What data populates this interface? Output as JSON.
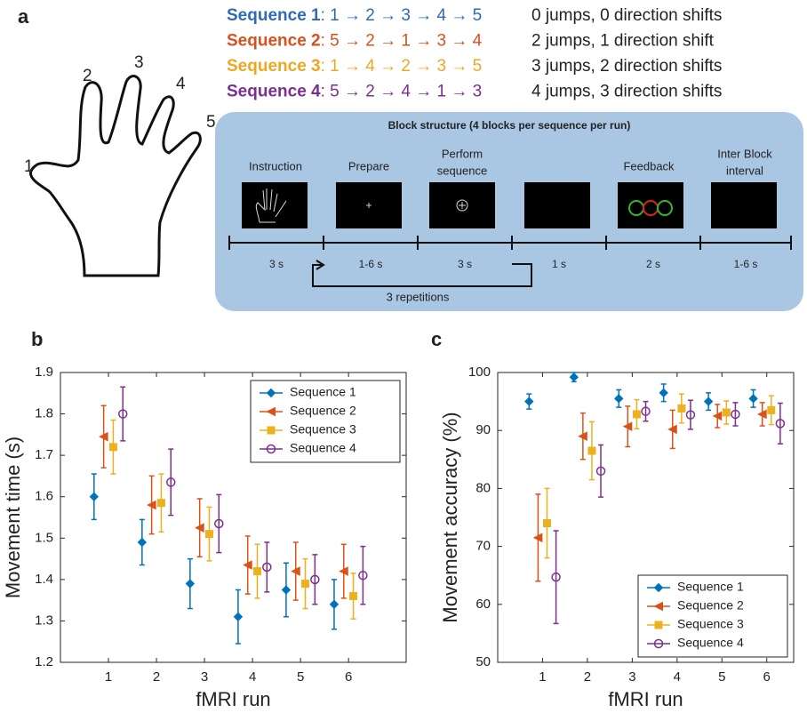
{
  "panel_a": {
    "panel_label": "a",
    "finger_labels": [
      "1",
      "2",
      "3",
      "4",
      "5"
    ],
    "sequences": [
      {
        "name": "Sequence 1",
        "steps": ": 1 → 2 → 3 → 4 → 5",
        "description": "0 jumps, 0 direction shifts",
        "color": "#2f6ab8"
      },
      {
        "name": "Sequence 2",
        "steps": ": 5 → 2 → 1 → 3 → 4",
        "description": "2 jumps, 1 direction shift",
        "color": "#d9501f"
      },
      {
        "name": "Sequence 3",
        "steps": ": 1 → 4 → 2 → 3 → 5",
        "description": "3 jumps, 2 direction shifts",
        "color": "#eba922"
      },
      {
        "name": "Sequence 4",
        "steps": ": 5 → 2 → 4 → 1 → 3",
        "description": "4 jumps, 3 direction shifts",
        "color": "#7b2f8e"
      }
    ],
    "block": {
      "title": "Block structure (4 blocks per sequence per run)",
      "stage_labels": [
        [
          "Instruction"
        ],
        [
          "Prepare"
        ],
        [
          "Perform",
          "sequence"
        ],
        [
          "Feedback"
        ],
        [
          "Inter Block",
          "interval"
        ]
      ],
      "durations": [
        "3 s",
        "1-6 s",
        "3 s",
        "1 s",
        "2 s",
        "1-6 s"
      ],
      "repetitions": "3 repetitions"
    }
  },
  "chart_data": [
    {
      "type": "errorbar",
      "panel_label": "b",
      "x_label": "fMRI run",
      "y_label": "Movement time (s)",
      "xlim": [
        0,
        7.2
      ],
      "xticks": [
        1,
        2,
        3,
        4,
        5,
        6
      ],
      "ylim": [
        1.2,
        1.9
      ],
      "yticks": [
        1.2,
        1.3,
        1.4,
        1.5,
        1.6,
        1.7,
        1.8,
        1.9
      ],
      "legend": "upper right",
      "series": [
        {
          "name": "Sequence 1",
          "color": "#0072bd",
          "marker": "diamond",
          "x": [
            0.7,
            1.7,
            2.7,
            3.7,
            4.7,
            5.7
          ],
          "values": [
            1.6,
            1.49,
            1.39,
            1.31,
            1.375,
            1.34
          ],
          "errors": [
            0.055,
            0.055,
            0.06,
            0.065,
            0.065,
            0.06
          ]
        },
        {
          "name": "Sequence 2",
          "color": "#d95319",
          "marker": "triangle-left",
          "x": [
            0.9,
            1.9,
            2.9,
            3.9,
            4.9,
            5.9
          ],
          "values": [
            1.745,
            1.58,
            1.525,
            1.435,
            1.42,
            1.42
          ],
          "errors": [
            0.075,
            0.07,
            0.07,
            0.07,
            0.07,
            0.065
          ]
        },
        {
          "name": "Sequence 3",
          "color": "#edb120",
          "marker": "square",
          "x": [
            1.1,
            2.1,
            3.1,
            4.1,
            5.1,
            6.1
          ],
          "values": [
            1.72,
            1.585,
            1.51,
            1.42,
            1.39,
            1.36
          ],
          "errors": [
            0.065,
            0.07,
            0.065,
            0.065,
            0.06,
            0.055
          ]
        },
        {
          "name": "Sequence 4",
          "color": "#7e2f8e",
          "marker": "circle",
          "x": [
            1.3,
            2.3,
            3.3,
            4.3,
            5.3,
            6.3
          ],
          "values": [
            1.8,
            1.635,
            1.535,
            1.43,
            1.4,
            1.41
          ],
          "errors": [
            0.065,
            0.08,
            0.07,
            0.06,
            0.06,
            0.07
          ]
        }
      ]
    },
    {
      "type": "errorbar",
      "panel_label": "c",
      "x_label": "fMRI run",
      "y_label": "Movement accuracy (%)",
      "xlim": [
        0,
        6.6
      ],
      "xticks": [
        1,
        2,
        3,
        4,
        5,
        6
      ],
      "ylim": [
        50,
        100
      ],
      "yticks": [
        50,
        60,
        70,
        80,
        90,
        100
      ],
      "legend": "lower right",
      "series": [
        {
          "name": "Sequence 1",
          "color": "#0072bd",
          "marker": "diamond",
          "x": [
            0.7,
            1.7,
            2.7,
            3.7,
            4.7,
            5.7
          ],
          "values": [
            95,
            99.2,
            95.5,
            96.5,
            95,
            95.5
          ],
          "errors": [
            1.3,
            0.8,
            1.5,
            1.5,
            1.5,
            1.5
          ]
        },
        {
          "name": "Sequence 2",
          "color": "#d95319",
          "marker": "triangle-left",
          "x": [
            0.9,
            1.9,
            2.9,
            3.9,
            4.9,
            5.9
          ],
          "values": [
            71.5,
            89,
            90.7,
            90.2,
            92.5,
            92.8
          ],
          "errors": [
            7.5,
            4,
            3.5,
            3.3,
            2,
            2
          ]
        },
        {
          "name": "Sequence 3",
          "color": "#edb120",
          "marker": "square",
          "x": [
            1.1,
            2.1,
            3.1,
            4.1,
            5.1,
            6.1
          ],
          "values": [
            74,
            86.5,
            92.8,
            93.8,
            93.1,
            93.5
          ],
          "errors": [
            6,
            5,
            2.5,
            2.5,
            2,
            2.5
          ]
        },
        {
          "name": "Sequence 4",
          "color": "#7e2f8e",
          "marker": "circle",
          "x": [
            1.3,
            2.3,
            3.3,
            4.3,
            5.3,
            6.3
          ],
          "values": [
            64.7,
            83,
            93.3,
            92.7,
            92.8,
            91.2
          ],
          "errors": [
            8,
            4.5,
            1.7,
            2.5,
            2,
            3.5
          ]
        }
      ]
    }
  ]
}
